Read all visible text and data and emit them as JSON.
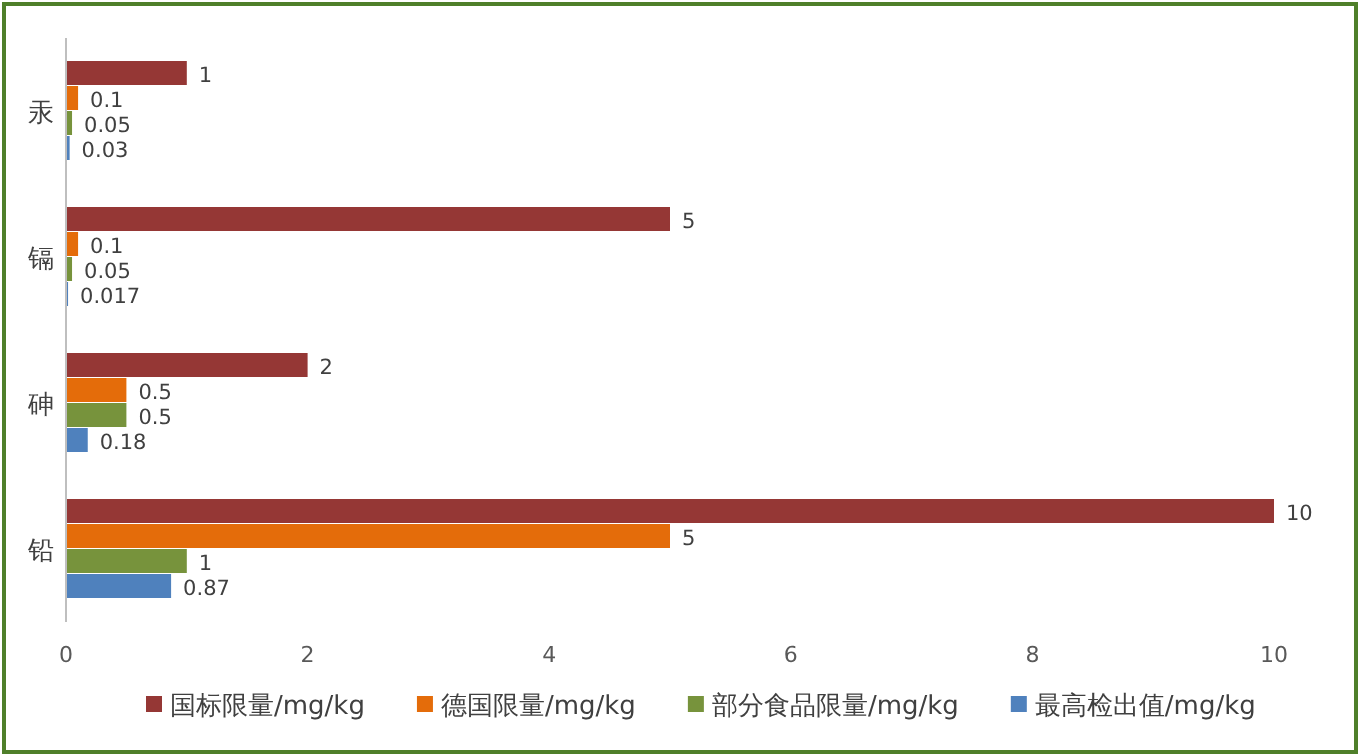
{
  "chart_data": {
    "type": "bar",
    "orientation": "horizontal",
    "categories": [
      "汞",
      "镉",
      "砷",
      "铅"
    ],
    "series": [
      {
        "name": "国标限量/mg/kg",
        "color": "#953735",
        "values": [
          1,
          5,
          2,
          10
        ]
      },
      {
        "name": "德国限量/mg/kg",
        "color": "#e46c0a",
        "values": [
          0.1,
          0.1,
          0.5,
          5
        ]
      },
      {
        "name": "部分食品限量/mg/kg",
        "color": "#77933c",
        "values": [
          0.05,
          0.05,
          0.5,
          1
        ]
      },
      {
        "name": "最高检出值/mg/kg",
        "color": "#4f81bd",
        "values": [
          0.03,
          0.017,
          0.18,
          0.87
        ]
      }
    ],
    "xlim": [
      0,
      10
    ],
    "xticks": [
      0,
      2,
      4,
      6,
      8,
      10
    ],
    "data_labels": true,
    "legend": "bottom",
    "grid": false
  }
}
